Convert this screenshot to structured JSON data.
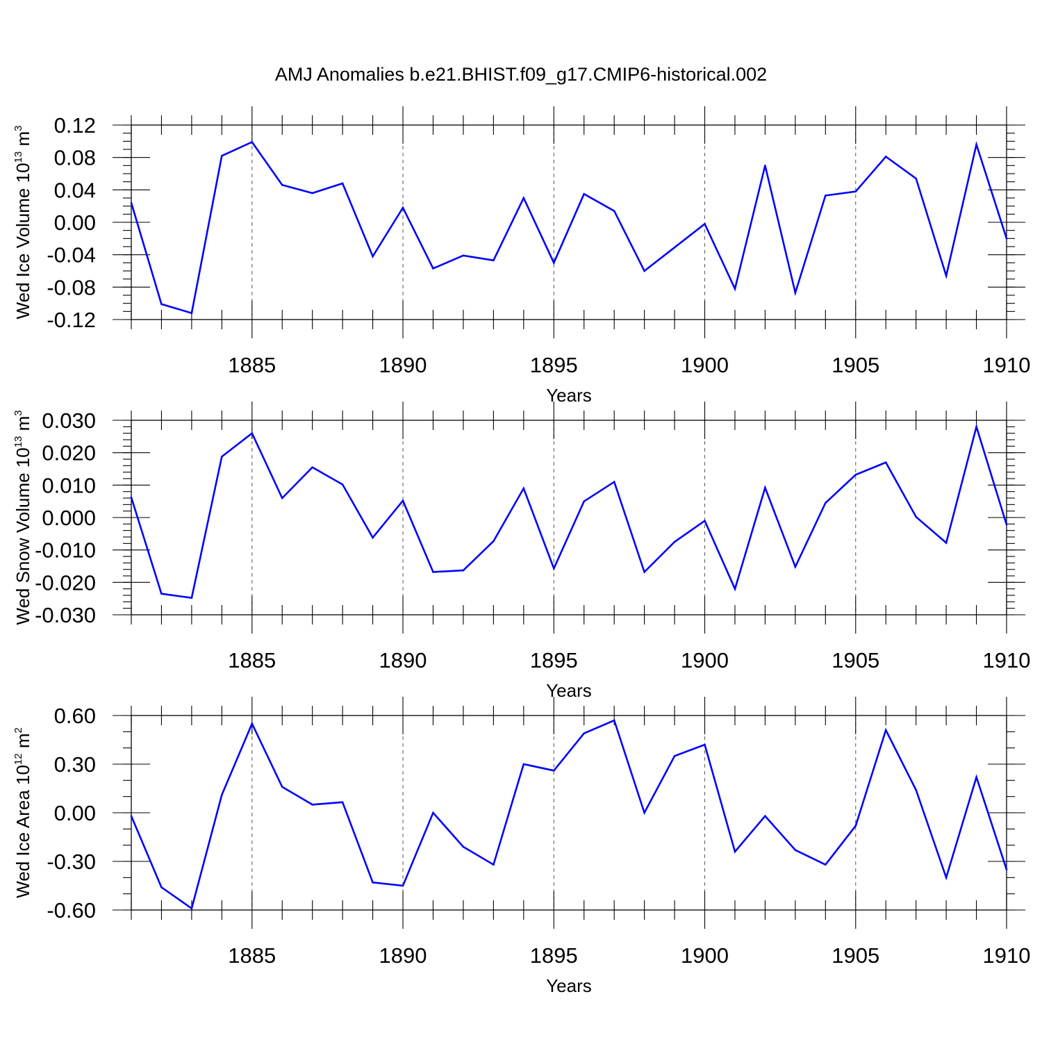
{
  "title": "AMJ Anomalies b.e21.BHIST.f09_g17.CMIP6-historical.002",
  "colors": {
    "series": "#0000ff",
    "axis": "#000000",
    "grid": "#555555"
  },
  "chart_data": [
    {
      "type": "line",
      "ylabel": {
        "text": "Wed Ice Volume 10",
        "sup": "13",
        "unit": " m",
        "unit_sup": "3"
      },
      "xlabel": "Years",
      "xlim": [
        1881,
        1910
      ],
      "ylim": [
        -0.12,
        0.12
      ],
      "xticks": [
        1885,
        1890,
        1895,
        1900,
        1905,
        1910
      ],
      "xtick_labels": [
        "1885",
        "1890",
        "1895",
        "1900",
        "1905",
        "1910"
      ],
      "yticks": [
        -0.12,
        -0.08,
        -0.04,
        0.0,
        0.04,
        0.08,
        0.12
      ],
      "ytick_labels": [
        "-0.12",
        "-0.08",
        "-0.04",
        "0.00",
        "0.04",
        "0.08",
        "0.12"
      ],
      "ytick_minor_step": 0.01,
      "grid": "vertical-dashed",
      "x": [
        1881,
        1882,
        1883,
        1884,
        1885,
        1886,
        1887,
        1888,
        1889,
        1890,
        1891,
        1892,
        1893,
        1894,
        1895,
        1896,
        1897,
        1898,
        1899,
        1900,
        1901,
        1902,
        1903,
        1904,
        1905,
        1906,
        1907,
        1908,
        1909,
        1910
      ],
      "values": [
        0.024,
        -0.101,
        -0.112,
        0.082,
        0.099,
        0.046,
        0.036,
        0.048,
        -0.042,
        0.018,
        -0.057,
        -0.041,
        -0.047,
        0.03,
        -0.05,
        0.035,
        0.014,
        -0.06,
        -0.031,
        -0.002,
        -0.082,
        0.07,
        -0.087,
        0.033,
        0.038,
        0.081,
        0.054,
        -0.066,
        0.096,
        -0.02
      ]
    },
    {
      "type": "line",
      "ylabel": {
        "text": "Wed Snow Volume 10",
        "sup": "13",
        "unit": " m",
        "unit_sup": "3"
      },
      "xlabel": "Years",
      "xlim": [
        1881,
        1910
      ],
      "ylim": [
        -0.03,
        0.03
      ],
      "xticks": [
        1885,
        1890,
        1895,
        1900,
        1905,
        1910
      ],
      "xtick_labels": [
        "1885",
        "1890",
        "1895",
        "1900",
        "1905",
        "1910"
      ],
      "yticks": [
        -0.03,
        -0.02,
        -0.01,
        0.0,
        0.01,
        0.02,
        0.03
      ],
      "ytick_labels": [
        "-0.030",
        "-0.020",
        "-0.010",
        "0.000",
        "0.010",
        "0.020",
        "0.030"
      ],
      "ytick_minor_step": 0.002,
      "grid": "vertical-dashed",
      "x": [
        1881,
        1882,
        1883,
        1884,
        1885,
        1886,
        1887,
        1888,
        1889,
        1890,
        1891,
        1892,
        1893,
        1894,
        1895,
        1896,
        1897,
        1898,
        1899,
        1900,
        1901,
        1902,
        1903,
        1904,
        1905,
        1906,
        1907,
        1908,
        1909,
        1910
      ],
      "values": [
        0.0062,
        -0.0235,
        -0.0248,
        0.0188,
        0.026,
        0.006,
        0.0155,
        0.0102,
        -0.0062,
        0.0052,
        -0.0168,
        -0.0163,
        -0.0073,
        0.009,
        -0.0157,
        0.005,
        0.011,
        -0.0168,
        -0.0075,
        -0.001,
        -0.022,
        0.0092,
        -0.0152,
        0.0045,
        0.0132,
        0.017,
        0.0002,
        -0.0078,
        0.028,
        -0.0022
      ]
    },
    {
      "type": "line",
      "ylabel": {
        "text": "Wed Ice Area 10",
        "sup": "12",
        "unit": " m",
        "unit_sup": "2"
      },
      "xlabel": "Years",
      "xlim": [
        1881,
        1910
      ],
      "ylim": [
        -0.6,
        0.6
      ],
      "xticks": [
        1885,
        1890,
        1895,
        1900,
        1905,
        1910
      ],
      "xtick_labels": [
        "1885",
        "1890",
        "1895",
        "1900",
        "1905",
        "1910"
      ],
      "yticks": [
        -0.6,
        -0.3,
        0.0,
        0.3,
        0.6
      ],
      "ytick_labels": [
        "-0.60",
        "-0.30",
        "0.00",
        "0.30",
        "0.60"
      ],
      "ytick_minor_step": 0.1,
      "grid": "vertical-dashed",
      "x": [
        1881,
        1882,
        1883,
        1884,
        1885,
        1886,
        1887,
        1888,
        1889,
        1890,
        1891,
        1892,
        1893,
        1894,
        1895,
        1896,
        1897,
        1898,
        1899,
        1900,
        1901,
        1902,
        1903,
        1904,
        1905,
        1906,
        1907,
        1908,
        1909,
        1910
      ],
      "values": [
        -0.02,
        -0.46,
        -0.59,
        0.11,
        0.55,
        0.16,
        0.05,
        0.065,
        -0.43,
        -0.45,
        0.0,
        -0.21,
        -0.32,
        0.3,
        0.26,
        0.49,
        0.57,
        0.0,
        0.35,
        0.42,
        -0.24,
        -0.02,
        -0.23,
        -0.32,
        -0.08,
        0.51,
        0.14,
        -0.4,
        0.22,
        -0.35
      ]
    }
  ]
}
